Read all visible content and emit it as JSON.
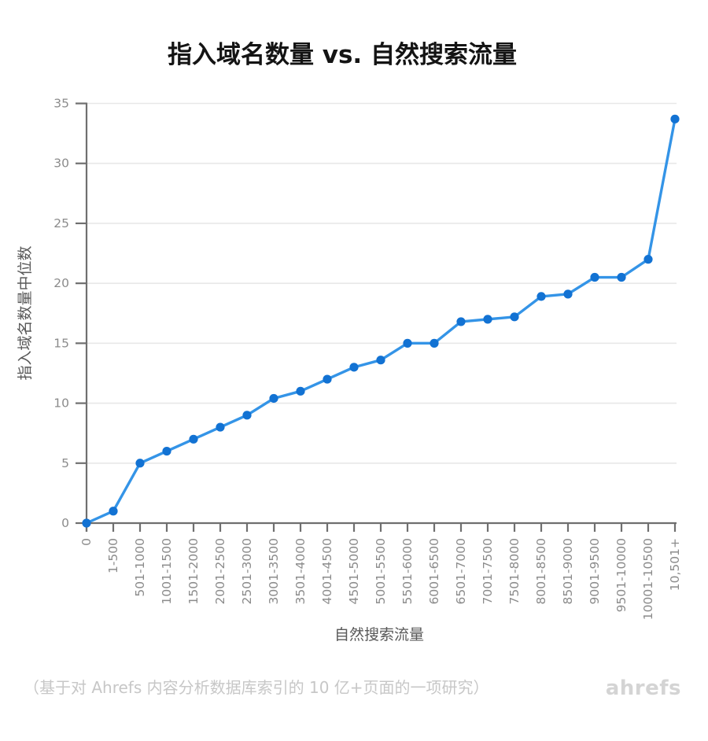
{
  "title": "指入域名数量 vs. 自然搜索流量",
  "footer": {
    "note": "（基于对 Ahrefs 内容分析数据库索引的 10 亿+页面的一项研究）",
    "brand": "ahrefs"
  },
  "chart_data": {
    "type": "line",
    "title": "指入域名数量 vs. 自然搜索流量",
    "xlabel": "自然搜索流量",
    "ylabel": "指入域名数量中位数",
    "categories": [
      "0",
      "1-500",
      "501-1000",
      "1001-1500",
      "1501-2000",
      "2001-2500",
      "2501-3000",
      "3001-3500",
      "3501-4000",
      "4001-4500",
      "4501-5000",
      "5001-5500",
      "5501-6000",
      "6001-6500",
      "6501-7000",
      "7001-7500",
      "7501-8000",
      "8001-8500",
      "8501-9000",
      "9001-9500",
      "9501-10000",
      "10001-10500",
      "10,501+"
    ],
    "values": [
      0,
      1,
      5,
      6,
      7,
      8,
      9,
      10.4,
      11,
      12,
      13,
      13.6,
      15,
      15,
      16.8,
      17,
      17.2,
      18.9,
      19.1,
      20.5,
      20.5,
      22,
      33.7
    ],
    "ylim": [
      0,
      35
    ],
    "yticks": [
      0,
      5,
      10,
      15,
      20,
      25,
      30,
      35
    ],
    "grid": "horizontal",
    "legend_position": "none",
    "x_tick_rotation": 90,
    "colors": {
      "line": "#3494e7",
      "marker": "#1272d3",
      "axis": "#6f6f6f",
      "gridline": "#e8e8e8",
      "tick_label": "#8b8b8b",
      "title": "#141414",
      "axis_label": "#595959",
      "footer": "#c7c7c7",
      "brand": "#d4d4d4",
      "background": "#ffffff"
    }
  }
}
